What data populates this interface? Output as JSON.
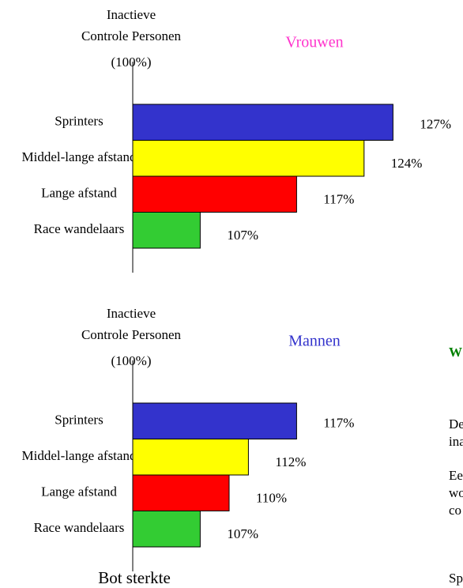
{
  "chart_data": [
    {
      "type": "bar",
      "orientation": "horizontal",
      "title": "Vrouwen",
      "title_color": "#ff33cc",
      "axis_label": [
        "Inactieve",
        "Controle Personen",
        "(100%)"
      ],
      "categories": [
        "Sprinters",
        "Middel-lange afstand",
        "Lange afstand",
        "Race wandelaars"
      ],
      "values": [
        127,
        124,
        117,
        107
      ],
      "value_labels": [
        "127%",
        "124%",
        "117%",
        "107%"
      ],
      "colors": [
        "#3333cc",
        "#ffff00",
        "#ff0000",
        "#33cc33"
      ],
      "xlim": [
        100,
        130
      ]
    },
    {
      "type": "bar",
      "orientation": "horizontal",
      "title": "Mannen",
      "title_color": "#3333cc",
      "axis_label": [
        "Inactieve",
        "Controle Personen",
        "(100%)"
      ],
      "categories": [
        "Sprinters",
        "Middel-lange afstand",
        "Lange afstand",
        "Race wandelaars"
      ],
      "values": [
        117,
        112,
        110,
        107
      ],
      "value_labels": [
        "117%",
        "112%",
        "110%",
        "107%"
      ],
      "colors": [
        "#3333cc",
        "#ffff00",
        "#ff0000",
        "#33cc33"
      ],
      "xlim": [
        100,
        130
      ]
    }
  ],
  "caption": "Bot sterkte",
  "side_panel": {
    "heading": "W",
    "lines": [
      "De",
      "ina",
      "Ee",
      "wo",
      "co",
      "Sp"
    ]
  }
}
